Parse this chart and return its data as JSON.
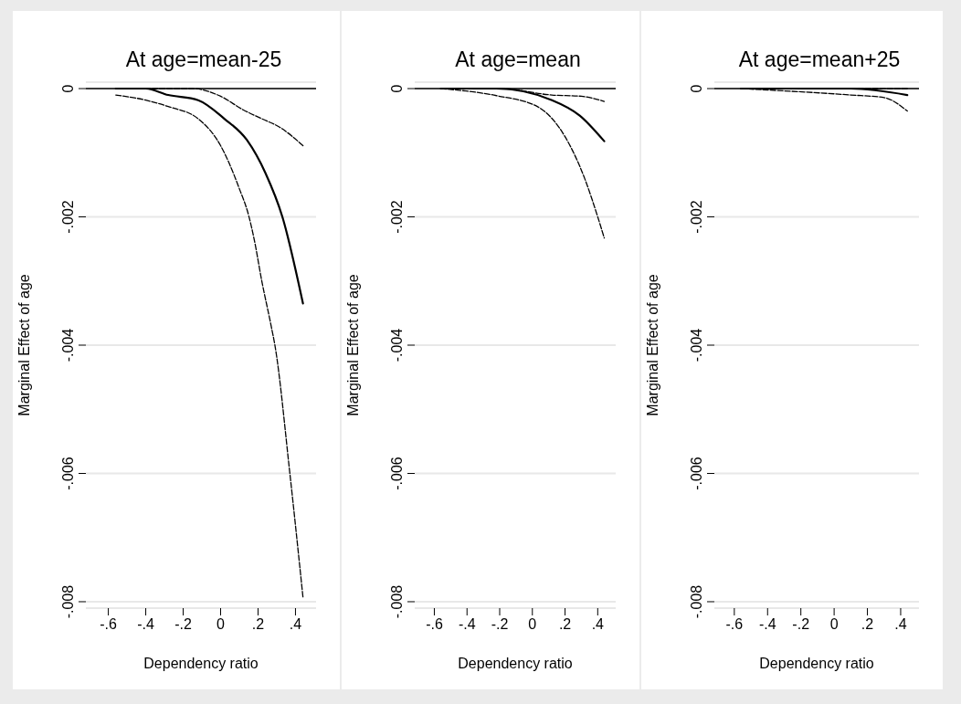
{
  "chart_data": [
    {
      "type": "line",
      "title": "At age=mean-25",
      "xlabel": "Dependency ratio",
      "ylabel": "Marginal Effect of age",
      "xlim": [
        -0.72,
        0.51
      ],
      "xticks": [
        {
          "value": -0.6,
          "label": "-.6"
        },
        {
          "value": -0.4,
          "label": "-.4"
        },
        {
          "value": -0.2,
          "label": "-.2"
        },
        {
          "value": 0,
          "label": "0"
        },
        {
          "value": 0.2,
          "label": ".2"
        },
        {
          "value": 0.4,
          "label": ".4"
        }
      ],
      "ylim": [
        -0.0081,
        0.0001
      ],
      "yticks": [
        {
          "value": -0.008,
          "label": "-.008"
        },
        {
          "value": -0.006,
          "label": "-.006"
        },
        {
          "value": -0.004,
          "label": "-.004"
        },
        {
          "value": -0.002,
          "label": "-.002"
        },
        {
          "value": 0,
          "label": "0"
        }
      ],
      "grid": "y",
      "marker": "none",
      "ref_lines": [
        {
          "axis": "y",
          "value": 0,
          "color": "#000000"
        }
      ],
      "series": [
        {
          "color": "#000000",
          "line_style": "dashed",
          "x": [
            -0.56,
            -0.4,
            -0.15,
            0.0,
            0.12,
            0.22,
            0.32,
            0.44
          ],
          "values": [
            0.0,
            0.0,
            0.0,
            -0.00012,
            -0.00033,
            -0.00047,
            -0.00061,
            -0.00089
          ]
        },
        {
          "color": "#000000",
          "line_style": "solid",
          "x": [
            -0.56,
            -0.4,
            -0.28,
            -0.12,
            0.02,
            0.14,
            0.24,
            0.33,
            0.44
          ],
          "values": [
            0.0,
            0.0,
            -0.0001,
            -0.00018,
            -0.00047,
            -0.0008,
            -0.00132,
            -0.002,
            -0.00335
          ]
        },
        {
          "color": "#000000",
          "line_style": "dashed",
          "x": [
            -0.56,
            -0.4,
            -0.28,
            -0.12,
            0.0,
            0.1,
            0.15,
            0.18,
            0.22,
            0.27,
            0.29,
            0.37,
            0.44
          ],
          "values": [
            -0.0001,
            -0.00018,
            -0.00028,
            -0.00047,
            -0.00089,
            -0.00156,
            -0.00198,
            -0.00236,
            -0.003,
            -0.0037,
            -0.004,
            -0.006,
            -0.00793
          ]
        }
      ]
    },
    {
      "type": "line",
      "title": "At age=mean",
      "xlabel": "Dependency ratio",
      "ylabel": "Marginal Effect of age",
      "xlim": [
        -0.72,
        0.51
      ],
      "xticks": [
        {
          "value": -0.6,
          "label": "-.6"
        },
        {
          "value": -0.4,
          "label": "-.4"
        },
        {
          "value": -0.2,
          "label": "-.2"
        },
        {
          "value": 0,
          "label": "0"
        },
        {
          "value": 0.2,
          "label": ".2"
        },
        {
          "value": 0.4,
          "label": ".4"
        }
      ],
      "ylim": [
        -0.0081,
        0.0001
      ],
      "yticks": [
        {
          "value": -0.008,
          "label": "-.008"
        },
        {
          "value": -0.006,
          "label": "-.006"
        },
        {
          "value": -0.004,
          "label": "-.004"
        },
        {
          "value": -0.002,
          "label": "-.002"
        },
        {
          "value": 0,
          "label": "0"
        }
      ],
      "grid": "y",
      "marker": "none",
      "ref_lines": [
        {
          "axis": "y",
          "value": 0,
          "color": "#000000"
        }
      ],
      "series": [
        {
          "color": "#000000",
          "line_style": "dashed",
          "x": [
            -0.56,
            -0.2,
            0.12,
            0.3,
            0.44
          ],
          "values": [
            0.0,
            0.0,
            -0.0001,
            -0.00012,
            -0.0002
          ]
        },
        {
          "color": "#000000",
          "line_style": "solid",
          "x": [
            -0.56,
            -0.22,
            0.12,
            0.29,
            0.44
          ],
          "values": [
            0.0,
            0.0,
            -0.00018,
            -0.00042,
            -0.00082
          ]
        },
        {
          "color": "#000000",
          "line_style": "dashed",
          "x": [
            -0.56,
            -0.22,
            0.03,
            0.2,
            0.32,
            0.4,
            0.44
          ],
          "values": [
            0.0,
            -0.00011,
            -0.00028,
            -0.00075,
            -0.0014,
            -0.002,
            -0.00233
          ]
        }
      ]
    },
    {
      "type": "line",
      "title": "At age=mean+25",
      "xlabel": "Dependency ratio",
      "ylabel": "Marginal Effect of age",
      "xlim": [
        -0.72,
        0.51
      ],
      "xticks": [
        {
          "value": -0.6,
          "label": "-.6"
        },
        {
          "value": -0.4,
          "label": "-.4"
        },
        {
          "value": -0.2,
          "label": "-.2"
        },
        {
          "value": 0,
          "label": "0"
        },
        {
          "value": 0.2,
          "label": ".2"
        },
        {
          "value": 0.4,
          "label": ".4"
        }
      ],
      "ylim": [
        -0.0081,
        0.0001
      ],
      "yticks": [
        {
          "value": -0.008,
          "label": "-.008"
        },
        {
          "value": -0.006,
          "label": "-.006"
        },
        {
          "value": -0.004,
          "label": "-.004"
        },
        {
          "value": -0.002,
          "label": "-.002"
        },
        {
          "value": 0,
          "label": "0"
        }
      ],
      "grid": "y",
      "marker": "none",
      "ref_lines": [
        {
          "axis": "y",
          "value": 0,
          "color": "#000000"
        }
      ],
      "series": [
        {
          "color": "#000000",
          "line_style": "dashed",
          "x": [
            -0.56,
            0.0,
            0.44
          ],
          "values": [
            0.0,
            0.0,
            0.0
          ]
        },
        {
          "color": "#000000",
          "line_style": "solid",
          "x": [
            -0.56,
            0.1,
            0.44
          ],
          "values": [
            0.0,
            0.0,
            -0.0001
          ]
        },
        {
          "color": "#000000",
          "line_style": "dashed",
          "x": [
            -0.56,
            0.1,
            0.3,
            0.44
          ],
          "values": [
            0.0,
            -0.0001,
            -0.00014,
            -0.00035
          ]
        }
      ]
    }
  ]
}
